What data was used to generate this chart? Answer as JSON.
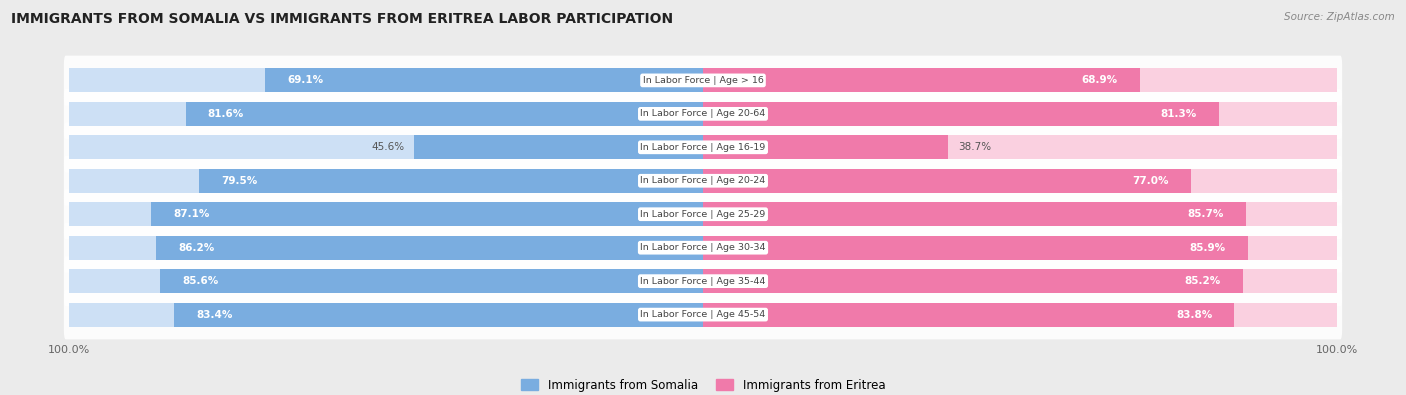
{
  "title": "IMMIGRANTS FROM SOMALIA VS IMMIGRANTS FROM ERITREA LABOR PARTICIPATION",
  "source": "Source: ZipAtlas.com",
  "categories": [
    "In Labor Force | Age > 16",
    "In Labor Force | Age 20-64",
    "In Labor Force | Age 16-19",
    "In Labor Force | Age 20-24",
    "In Labor Force | Age 25-29",
    "In Labor Force | Age 30-34",
    "In Labor Force | Age 35-44",
    "In Labor Force | Age 45-54"
  ],
  "somalia_values": [
    69.1,
    81.6,
    45.6,
    79.5,
    87.1,
    86.2,
    85.6,
    83.4
  ],
  "eritrea_values": [
    68.9,
    81.3,
    38.7,
    77.0,
    85.7,
    85.9,
    85.2,
    83.8
  ],
  "somalia_color": "#7aade0",
  "eritrea_color": "#f07aaa",
  "somalia_light_color": "#cde0f5",
  "eritrea_light_color": "#fad0e0",
  "label_somalia": "Immigrants from Somalia",
  "label_eritrea": "Immigrants from Eritrea",
  "bg_color": "#ebebeb",
  "max_value": 100.0,
  "bar_height": 0.72
}
